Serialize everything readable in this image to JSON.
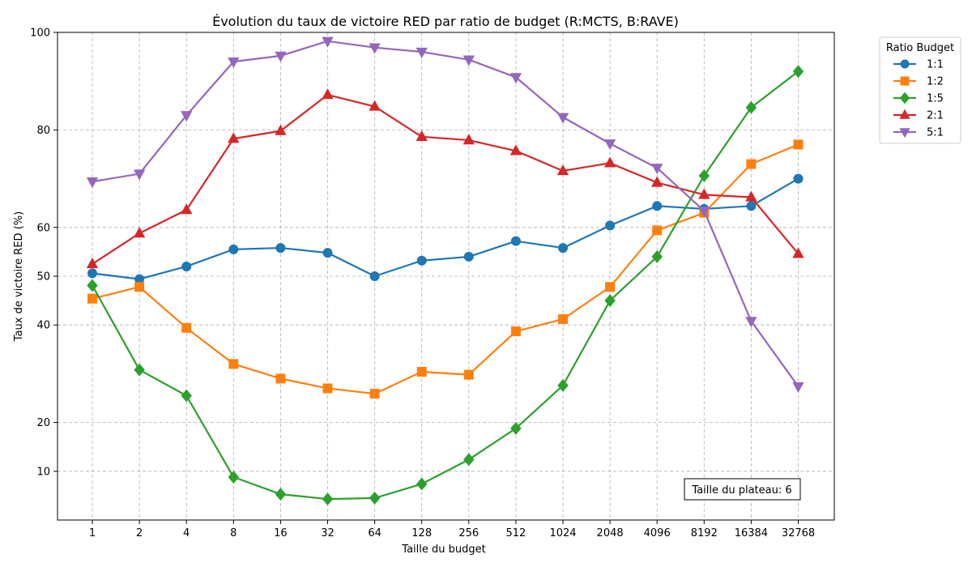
{
  "chart_data": {
    "type": "line",
    "title": "Évolution du taux de victoire RED par ratio de budget (R:MCTS, B:RAVE)",
    "xlabel": "Taille du budget",
    "ylabel": "Taux de victoire RED (%)",
    "categories": [
      "1",
      "2",
      "4",
      "8",
      "16",
      "32",
      "64",
      "128",
      "256",
      "512",
      "1024",
      "2048",
      "4096",
      "8192",
      "16384",
      "32768"
    ],
    "y_ticks": [
      10,
      20,
      40,
      50,
      60,
      80,
      100
    ],
    "ylim": [
      0,
      100
    ],
    "grid": true,
    "legend_title": "Ratio Budget",
    "legend_position": "outside top-right",
    "annotation": "Taille du plateau: 6",
    "series": [
      {
        "name": "1:1",
        "color": "#1f77b4",
        "marker": "circle",
        "values": [
          50.6,
          49.4,
          52.0,
          55.5,
          55.8,
          54.8,
          50.0,
          53.2,
          54.0,
          57.2,
          55.8,
          60.4,
          64.4,
          63.8,
          64.4,
          70.0
        ]
      },
      {
        "name": "1:2",
        "color": "#ff7f0e",
        "marker": "square",
        "values": [
          45.4,
          47.8,
          39.4,
          32.0,
          29.0,
          27.0,
          25.9,
          30.4,
          29.8,
          38.7,
          41.2,
          47.8,
          59.4,
          63.0,
          73.0,
          77.0
        ]
      },
      {
        "name": "1:5",
        "color": "#2ca02c",
        "marker": "diamond",
        "values": [
          48.1,
          30.8,
          25.5,
          8.8,
          5.3,
          4.3,
          4.5,
          7.4,
          12.4,
          18.8,
          27.6,
          45.0,
          54.0,
          70.6,
          84.6,
          92.0
        ]
      },
      {
        "name": "2:1",
        "color": "#d62728",
        "marker": "triangle-up",
        "values": [
          52.5,
          58.8,
          63.6,
          78.2,
          79.8,
          87.2,
          84.8,
          78.6,
          77.9,
          75.7,
          71.6,
          73.2,
          69.2,
          66.7,
          66.2,
          54.6
        ]
      },
      {
        "name": "5:1",
        "color": "#9467bd",
        "marker": "triangle-down",
        "values": [
          69.4,
          71.0,
          83.0,
          94.0,
          95.2,
          98.2,
          96.9,
          96.0,
          94.4,
          90.8,
          82.6,
          77.2,
          72.2,
          63.4,
          40.8,
          27.4
        ]
      }
    ]
  }
}
